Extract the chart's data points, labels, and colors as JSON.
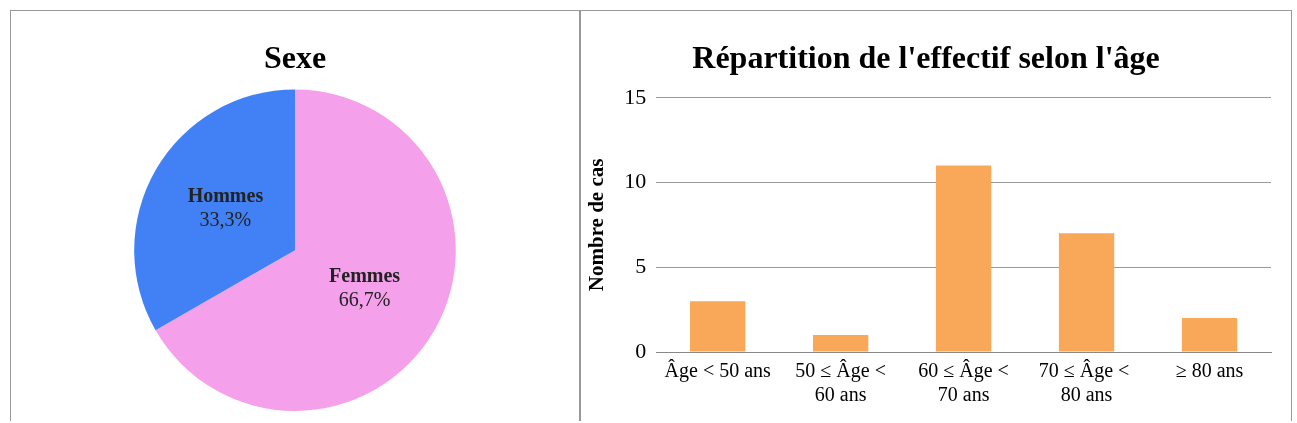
{
  "chart_data": [
    {
      "type": "pie",
      "title": "Sexe",
      "categories": [
        "Femmes",
        "Hommes"
      ],
      "values": [
        66.7,
        33.3
      ],
      "colors": [
        "#f5a0ea",
        "#4281f5"
      ],
      "value_labels": [
        "66,7%",
        "33,3%"
      ],
      "legend": false
    },
    {
      "type": "bar",
      "title": "Répartition de l'effectif selon l'âge",
      "ylabel": "Nombre de cas",
      "categories": [
        "Âge < 50 ans",
        "50 ≤ Âge < 60 ans",
        "60 ≤ Âge < 70 ans",
        "70 ≤ Âge <  80 ans",
        "≥ 80 ans"
      ],
      "values": [
        3,
        1,
        11,
        7,
        2
      ],
      "color": "#f9a85a",
      "ylim": [
        0,
        15
      ],
      "yticks": [
        0,
        5,
        10,
        15
      ],
      "grid": "y",
      "legend": false
    }
  ]
}
